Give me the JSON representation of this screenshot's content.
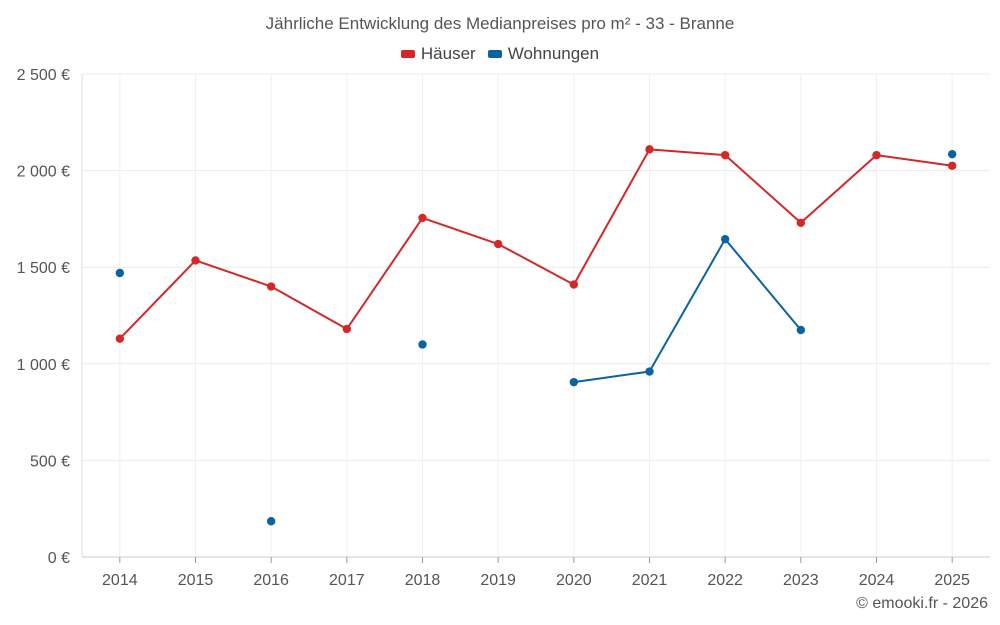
{
  "chart_data": {
    "type": "line",
    "title": "Jährliche Entwicklung des Medianpreises pro m² - 33 - Branne",
    "x": [
      "2014",
      "2015",
      "2016",
      "2017",
      "2018",
      "2019",
      "2020",
      "2021",
      "2022",
      "2023",
      "2024",
      "2025"
    ],
    "y_ticks": [
      "0 €",
      "500 €",
      "1 000 €",
      "1 500 €",
      "2 000 €",
      "2 500 €"
    ],
    "ylim": [
      0,
      2500
    ],
    "grid": true,
    "legend_position": "top-center",
    "series": [
      {
        "name": "Häuser",
        "color": "#d62728",
        "values": [
          1130,
          1535,
          1400,
          1180,
          1755,
          1620,
          1410,
          2110,
          2080,
          1730,
          2080,
          2025
        ]
      },
      {
        "name": "Wohnungen",
        "color": "#0b63a0",
        "values": [
          1470,
          null,
          185,
          null,
          1100,
          null,
          905,
          960,
          1645,
          1175,
          null,
          2085
        ]
      }
    ],
    "credit": "© emooki.fr - 2026"
  }
}
